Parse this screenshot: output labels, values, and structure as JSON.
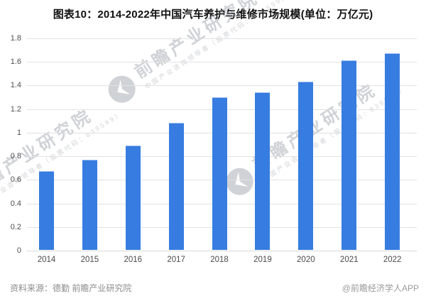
{
  "title": "图表10：2014-2022年中国汽车养护与维修市场规模(单位：万亿元)",
  "footer": {
    "source": "资料来源：德勤 前瞻产业研究院",
    "credit": "@前瞻经济学人APP"
  },
  "watermark": {
    "brand": "前瞻产业研究院",
    "subtext": "中国产业咨询领导者（股票代码：839599）"
  },
  "colors": {
    "bar": "#377ce0",
    "grid": "#e2e2e2",
    "baseline": "#d8d8d8",
    "axis_text": "#4d4d4d",
    "title_text": "#111111",
    "footer_text": "#8c8c8c",
    "watermark": "#8a909a"
  },
  "chart_data": {
    "type": "bar",
    "title": "图表10：2014-2022年中国汽车养护与维修市场规模(单位：万亿元)",
    "unit": "万亿元",
    "categories": [
      "2014",
      "2015",
      "2016",
      "2017",
      "2018",
      "2019",
      "2020",
      "2021",
      "2022"
    ],
    "values": [
      0.66,
      0.76,
      0.88,
      1.07,
      1.29,
      1.33,
      1.42,
      1.6,
      1.66
    ],
    "xlabel": "",
    "ylabel": "",
    "ylim": [
      0,
      1.8
    ],
    "yticks": [
      {
        "value": 1.8,
        "label": "1.8"
      },
      {
        "value": 1.6,
        "label": "1.6"
      },
      {
        "value": 1.4,
        "label": "1.4"
      },
      {
        "value": 1.2,
        "label": "1.2"
      },
      {
        "value": 1.0,
        "label": "1"
      },
      {
        "value": 0.8,
        "label": "0.8"
      },
      {
        "value": 0.6,
        "label": "0.6"
      },
      {
        "value": 0.4,
        "label": "0.4"
      },
      {
        "value": 0.2,
        "label": "0.2"
      },
      {
        "value": 0.0,
        "label": "0"
      }
    ],
    "grid": true,
    "legend": false
  }
}
